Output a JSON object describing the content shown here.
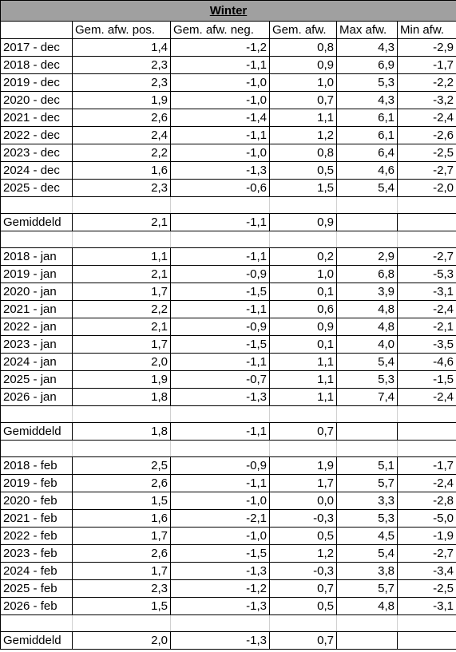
{
  "title": "Winter",
  "columns": [
    "Gem. afw. pos.",
    "Gem. afw. neg.",
    "Gem. afw.",
    "Max afw.",
    "Min afw."
  ],
  "sections": [
    {
      "rows": [
        [
          "2017 - dec",
          "1,4",
          "-1,2",
          "0,8",
          "4,3",
          "-2,9"
        ],
        [
          "2018 - dec",
          "2,3",
          "-1,1",
          "0,9",
          "6,9",
          "-1,7"
        ],
        [
          "2019 - dec",
          "2,3",
          "-1,0",
          "1,0",
          "5,3",
          "-2,2"
        ],
        [
          "2020 - dec",
          "1,9",
          "-1,0",
          "0,7",
          "4,3",
          "-3,2"
        ],
        [
          "2021 - dec",
          "2,6",
          "-1,4",
          "1,1",
          "6,1",
          "-2,4"
        ],
        [
          "2022 - dec",
          "2,4",
          "-1,1",
          "1,2",
          "6,1",
          "-2,6"
        ],
        [
          "2023 - dec",
          "2,2",
          "-1,0",
          "0,8",
          "6,4",
          "-2,5"
        ],
        [
          "2024 - dec",
          "1,6",
          "-1,3",
          "0,5",
          "4,6",
          "-2,7"
        ],
        [
          "2025 - dec",
          "2,3",
          "-0,6",
          "1,5",
          "5,4",
          "-2,0"
        ]
      ],
      "average": [
        "Gemiddeld",
        "2,1",
        "-1,1",
        "0,9"
      ]
    },
    {
      "rows": [
        [
          "2018 - jan",
          "1,1",
          "-1,1",
          "0,2",
          "2,9",
          "-2,7"
        ],
        [
          "2019 - jan",
          "2,1",
          "-0,9",
          "1,0",
          "6,8",
          "-5,3"
        ],
        [
          "2020 - jan",
          "1,7",
          "-1,5",
          "0,1",
          "3,9",
          "-3,1"
        ],
        [
          "2021 - jan",
          "2,2",
          "-1,1",
          "0,6",
          "4,8",
          "-2,4"
        ],
        [
          "2022 - jan",
          "2,1",
          "-0,9",
          "0,9",
          "4,8",
          "-2,1"
        ],
        [
          "2023 - jan",
          "1,7",
          "-1,5",
          "0,1",
          "4,0",
          "-3,5"
        ],
        [
          "2024 - jan",
          "2,0",
          "-1,1",
          "1,1",
          "5,4",
          "-4,6"
        ],
        [
          "2025 - jan",
          "1,9",
          "-0,7",
          "1,1",
          "5,3",
          "-1,5"
        ],
        [
          "2026 - jan",
          "1,8",
          "-1,3",
          "1,1",
          "7,4",
          "-2,4"
        ]
      ],
      "average": [
        "Gemiddeld",
        "1,8",
        "-1,1",
        "0,7"
      ]
    },
    {
      "rows": [
        [
          "2018 - feb",
          "2,5",
          "-0,9",
          "1,9",
          "5,1",
          "-1,7"
        ],
        [
          "2019 - feb",
          "2,6",
          "-1,1",
          "1,7",
          "5,7",
          "-2,4"
        ],
        [
          "2020 - feb",
          "1,5",
          "-1,0",
          "0,0",
          "3,3",
          "-2,8"
        ],
        [
          "2021 - feb",
          "1,6",
          "-2,1",
          "-0,3",
          "5,3",
          "-5,0"
        ],
        [
          "2022 - feb",
          "1,7",
          "-1,0",
          "0,5",
          "4,5",
          "-1,9"
        ],
        [
          "2023 - feb",
          "2,6",
          "-1,5",
          "1,2",
          "5,4",
          "-2,7"
        ],
        [
          "2024 - feb",
          "1,7",
          "-1,3",
          "-0,3",
          "3,8",
          "-3,4"
        ],
        [
          "2025 - feb",
          "2,3",
          "-1,2",
          "0,7",
          "5,7",
          "-2,5"
        ],
        [
          "2026 - feb",
          "1,5",
          "-1,3",
          "0,5",
          "4,8",
          "-3,1"
        ]
      ],
      "average": [
        "Gemiddeld",
        "2,0",
        "-1,3",
        "0,7"
      ]
    }
  ]
}
